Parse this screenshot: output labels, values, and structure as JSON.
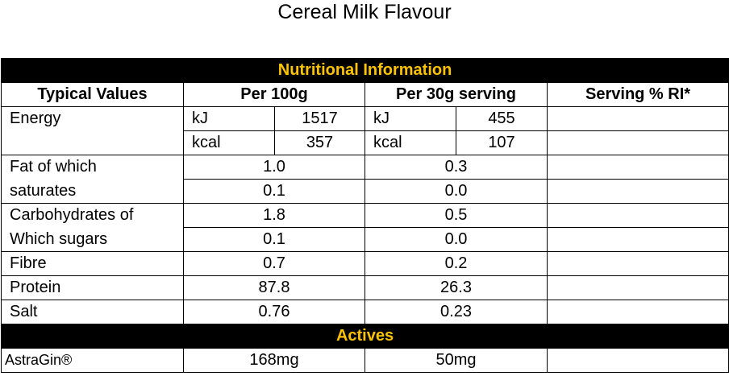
{
  "title": "Cereal Milk Flavour",
  "sections": {
    "nutrition": "Nutritional Information",
    "actives": "Actives"
  },
  "headers": {
    "typical": "Typical Values",
    "per100": "Per 100g",
    "per30": "Per 30g serving",
    "ri": "Serving % RI*"
  },
  "energy": {
    "label": "Energy",
    "kj_unit": "kJ",
    "kcal_unit": "kcal",
    "kj_100": "1517",
    "kcal_100": "357",
    "kj_30": "455",
    "kcal_30": "107"
  },
  "rows": [
    {
      "label": "Fat of which",
      "per100": "1.0",
      "per30": "0.3",
      "ri": ""
    },
    {
      "label": "saturates",
      "per100": "0.1",
      "per30": "0.0",
      "ri": ""
    },
    {
      "label": "Carbohydrates of",
      "per100": "1.8",
      "per30": "0.5",
      "ri": ""
    },
    {
      "label": "Which sugars",
      "per100": "0.1",
      "per30": "0.0",
      "ri": ""
    },
    {
      "label": "Fibre",
      "per100": "0.7",
      "per30": "0.2",
      "ri": ""
    },
    {
      "label": "Protein",
      "per100": "87.8",
      "per30": "26.3",
      "ri": ""
    },
    {
      "label": "Salt",
      "per100": "0.76",
      "per30": "0.23",
      "ri": ""
    }
  ],
  "actives_rows": [
    {
      "label": "AstraGin®",
      "per100": "168mg",
      "per30": "50mg",
      "ri": ""
    }
  ]
}
